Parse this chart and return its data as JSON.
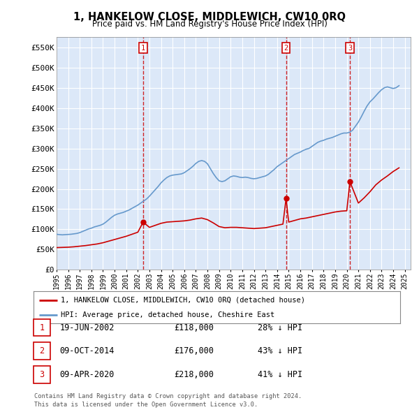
{
  "title": "1, HANKELOW CLOSE, MIDDLEWICH, CW10 0RQ",
  "subtitle": "Price paid vs. HM Land Registry's House Price Index (HPI)",
  "ylabel_ticks": [
    "£0",
    "£50K",
    "£100K",
    "£150K",
    "£200K",
    "£250K",
    "£300K",
    "£350K",
    "£400K",
    "£450K",
    "£500K",
    "£550K"
  ],
  "ytick_values": [
    0,
    50000,
    100000,
    150000,
    200000,
    250000,
    300000,
    350000,
    400000,
    450000,
    500000,
    550000
  ],
  "ylim": [
    0,
    575000
  ],
  "xlim_start": 1995.0,
  "xlim_end": 2025.5,
  "plot_bg_color": "#dce8f8",
  "grid_color": "#ffffff",
  "sale_color": "#cc0000",
  "hpi_color": "#6699cc",
  "transactions": [
    {
      "id": 1,
      "date": "19-JUN-2002",
      "price": 118000,
      "year": 2002.46,
      "note": "28% ↓ HPI"
    },
    {
      "id": 2,
      "date": "09-OCT-2014",
      "price": 176000,
      "year": 2014.77,
      "note": "43% ↓ HPI"
    },
    {
      "id": 3,
      "date": "09-APR-2020",
      "price": 218000,
      "year": 2020.27,
      "note": "41% ↓ HPI"
    }
  ],
  "legend_line1": "1, HANKELOW CLOSE, MIDDLEWICH, CW10 0RQ (detached house)",
  "legend_line2": "HPI: Average price, detached house, Cheshire East",
  "footer1": "Contains HM Land Registry data © Crown copyright and database right 2024.",
  "footer2": "This data is licensed under the Open Government Licence v3.0.",
  "hpi_data_x": [
    1995.0,
    1995.25,
    1995.5,
    1995.75,
    1996.0,
    1996.25,
    1996.5,
    1996.75,
    1997.0,
    1997.25,
    1997.5,
    1997.75,
    1998.0,
    1998.25,
    1998.5,
    1998.75,
    1999.0,
    1999.25,
    1999.5,
    1999.75,
    2000.0,
    2000.25,
    2000.5,
    2000.75,
    2001.0,
    2001.25,
    2001.5,
    2001.75,
    2002.0,
    2002.25,
    2002.5,
    2002.75,
    2003.0,
    2003.25,
    2003.5,
    2003.75,
    2004.0,
    2004.25,
    2004.5,
    2004.75,
    2005.0,
    2005.25,
    2005.5,
    2005.75,
    2006.0,
    2006.25,
    2006.5,
    2006.75,
    2007.0,
    2007.25,
    2007.5,
    2007.75,
    2008.0,
    2008.25,
    2008.5,
    2008.75,
    2009.0,
    2009.25,
    2009.5,
    2009.75,
    2010.0,
    2010.25,
    2010.5,
    2010.75,
    2011.0,
    2011.25,
    2011.5,
    2011.75,
    2012.0,
    2012.25,
    2012.5,
    2012.75,
    2013.0,
    2013.25,
    2013.5,
    2013.75,
    2014.0,
    2014.25,
    2014.5,
    2014.75,
    2015.0,
    2015.25,
    2015.5,
    2015.75,
    2016.0,
    2016.25,
    2016.5,
    2016.75,
    2017.0,
    2017.25,
    2017.5,
    2017.75,
    2018.0,
    2018.25,
    2018.5,
    2018.75,
    2019.0,
    2019.25,
    2019.5,
    2019.75,
    2020.0,
    2020.25,
    2020.5,
    2020.75,
    2021.0,
    2021.25,
    2021.5,
    2021.75,
    2022.0,
    2022.25,
    2022.5,
    2022.75,
    2023.0,
    2023.25,
    2023.5,
    2023.75,
    2024.0,
    2024.25,
    2024.5
  ],
  "hpi_data_y": [
    88000,
    87000,
    86500,
    87000,
    87500,
    88000,
    89000,
    90000,
    92000,
    95000,
    98000,
    101000,
    103000,
    106000,
    108000,
    110000,
    113000,
    118000,
    124000,
    130000,
    135000,
    138000,
    140000,
    142000,
    145000,
    148000,
    152000,
    156000,
    160000,
    165000,
    170000,
    175000,
    182000,
    190000,
    198000,
    206000,
    215000,
    222000,
    228000,
    232000,
    234000,
    235000,
    236000,
    237000,
    240000,
    245000,
    250000,
    256000,
    263000,
    268000,
    270000,
    268000,
    262000,
    250000,
    238000,
    228000,
    220000,
    218000,
    220000,
    225000,
    230000,
    232000,
    231000,
    229000,
    228000,
    229000,
    228000,
    226000,
    225000,
    226000,
    228000,
    230000,
    232000,
    236000,
    242000,
    248000,
    255000,
    260000,
    265000,
    270000,
    275000,
    280000,
    285000,
    288000,
    291000,
    295000,
    298000,
    300000,
    305000,
    310000,
    315000,
    318000,
    320000,
    323000,
    325000,
    327000,
    330000,
    333000,
    336000,
    338000,
    338000,
    340000,
    345000,
    355000,
    365000,
    378000,
    392000,
    405000,
    415000,
    422000,
    430000,
    438000,
    445000,
    450000,
    452000,
    450000,
    448000,
    450000,
    455000
  ],
  "sale_data_x": [
    1995.0,
    1995.5,
    1996.0,
    1996.5,
    1997.0,
    1997.5,
    1998.0,
    1998.5,
    1999.0,
    1999.5,
    2000.0,
    2000.5,
    2001.0,
    2001.5,
    2002.0,
    2002.46,
    2003.0,
    2003.5,
    2004.0,
    2004.5,
    2005.0,
    2005.5,
    2006.0,
    2006.5,
    2007.0,
    2007.5,
    2008.0,
    2008.5,
    2009.0,
    2009.5,
    2010.0,
    2010.5,
    2011.0,
    2011.5,
    2012.0,
    2012.5,
    2013.0,
    2013.5,
    2014.0,
    2014.5,
    2014.77,
    2015.0,
    2015.5,
    2016.0,
    2016.5,
    2017.0,
    2017.5,
    2018.0,
    2018.5,
    2019.0,
    2019.5,
    2020.0,
    2020.27,
    2021.0,
    2021.5,
    2022.0,
    2022.5,
    2023.0,
    2023.5,
    2024.0,
    2024.5
  ],
  "sale_data_y": [
    55000,
    55500,
    56000,
    57000,
    58500,
    60000,
    62000,
    64000,
    67000,
    71000,
    75000,
    79000,
    83000,
    88000,
    93000,
    118000,
    105000,
    110000,
    115000,
    118000,
    119000,
    120000,
    121000,
    123000,
    126000,
    128000,
    124000,
    116000,
    107000,
    104000,
    105000,
    105000,
    104000,
    103000,
    102000,
    103000,
    104000,
    107000,
    110000,
    113000,
    176000,
    118000,
    122000,
    126000,
    128000,
    131000,
    134000,
    137000,
    140000,
    143000,
    145000,
    146000,
    218000,
    165000,
    178000,
    193000,
    210000,
    222000,
    232000,
    243000,
    252000
  ]
}
